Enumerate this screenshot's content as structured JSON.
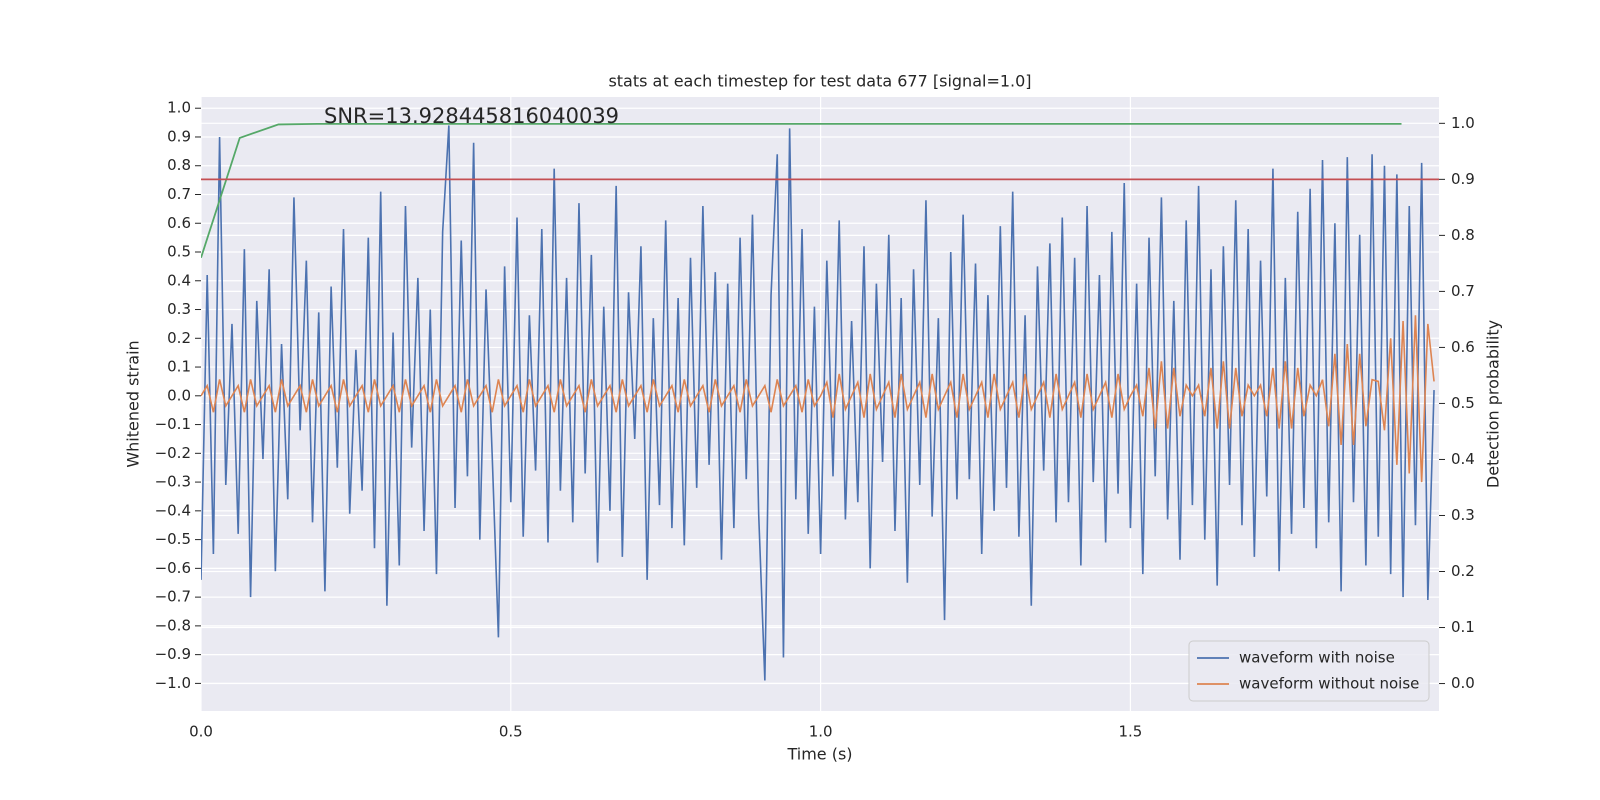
{
  "chart_data": {
    "type": "line",
    "title": "stats at each timestep for test data 677 [signal=1.0]",
    "annotation": "SNR=13.928445816040039",
    "xlabel": "Time (s)",
    "ylabel": "Whitened strain",
    "y2label": "Detection probability",
    "x": [
      0,
      0.01,
      0.02,
      0.03,
      0.04,
      0.05,
      0.06,
      0.07,
      0.08,
      0.09,
      0.1,
      0.11,
      0.12,
      0.13,
      0.14,
      0.15,
      0.16,
      0.17,
      0.18,
      0.19,
      0.2,
      0.21,
      0.22,
      0.23,
      0.24,
      0.25,
      0.26,
      0.27,
      0.28,
      0.29,
      0.3,
      0.31,
      0.32,
      0.33,
      0.34,
      0.35,
      0.36,
      0.37,
      0.38,
      0.39,
      0.4,
      0.41,
      0.42,
      0.43,
      0.44,
      0.45,
      0.46,
      0.47,
      0.48,
      0.49,
      0.5,
      0.51,
      0.52,
      0.53,
      0.54,
      0.55,
      0.56,
      0.57,
      0.58,
      0.59,
      0.6,
      0.61,
      0.62,
      0.63,
      0.64,
      0.65,
      0.66,
      0.67,
      0.68,
      0.69,
      0.7,
      0.71,
      0.72,
      0.73,
      0.74,
      0.75,
      0.76,
      0.77,
      0.78,
      0.79,
      0.8,
      0.81,
      0.82,
      0.83,
      0.84,
      0.85,
      0.86,
      0.87,
      0.88,
      0.89,
      0.9,
      0.91,
      0.92,
      0.93,
      0.94,
      0.95,
      0.96,
      0.97,
      0.98,
      0.99,
      1,
      1.01,
      1.02,
      1.03,
      1.04,
      1.05,
      1.06,
      1.07,
      1.08,
      1.09,
      1.1,
      1.11,
      1.12,
      1.13,
      1.14,
      1.15,
      1.16,
      1.17,
      1.18,
      1.19,
      1.2,
      1.21,
      1.22,
      1.23,
      1.24,
      1.25,
      1.26,
      1.27,
      1.28,
      1.29,
      1.3,
      1.31,
      1.32,
      1.33,
      1.34,
      1.35,
      1.36,
      1.37,
      1.38,
      1.39,
      1.4,
      1.41,
      1.42,
      1.43,
      1.44,
      1.45,
      1.46,
      1.47,
      1.48,
      1.49,
      1.5,
      1.51,
      1.52,
      1.53,
      1.54,
      1.55,
      1.56,
      1.57,
      1.58,
      1.59,
      1.6,
      1.61,
      1.62,
      1.63,
      1.64,
      1.65,
      1.66,
      1.67,
      1.68,
      1.69,
      1.7,
      1.71,
      1.72,
      1.73,
      1.74,
      1.75,
      1.76,
      1.77,
      1.78,
      1.79,
      1.8,
      1.81,
      1.82,
      1.83,
      1.84,
      1.85,
      1.86,
      1.87,
      1.88,
      1.89,
      1.9,
      1.91,
      1.92,
      1.93,
      1.94,
      1.95,
      1.96,
      1.97,
      1.98,
      1.99
    ],
    "series": [
      {
        "name": "waveform with noise",
        "color": "#4c72b0",
        "values": [
          -0.64,
          0.42,
          -0.55,
          0.9,
          -0.31,
          0.25,
          -0.48,
          0.51,
          -0.7,
          0.33,
          -0.22,
          0.44,
          -0.61,
          0.18,
          -0.36,
          0.69,
          -0.12,
          0.47,
          -0.44,
          0.29,
          -0.68,
          0.38,
          -0.25,
          0.58,
          -0.41,
          0.16,
          -0.33,
          0.55,
          -0.53,
          0.71,
          -0.73,
          0.22,
          -0.59,
          0.66,
          -0.18,
          0.41,
          -0.47,
          0.3,
          -0.62,
          0.57,
          0.94,
          -0.39,
          0.54,
          -0.28,
          0.88,
          -0.5,
          0.37,
          -0.21,
          -0.84,
          0.45,
          -0.37,
          0.62,
          -0.49,
          0.28,
          -0.26,
          0.58,
          -0.51,
          0.79,
          -0.33,
          0.41,
          -0.44,
          0.67,
          -0.27,
          0.49,
          -0.58,
          0.31,
          -0.4,
          0.73,
          -0.56,
          0.36,
          -0.15,
          0.52,
          -0.64,
          0.27,
          -0.38,
          0.61,
          -0.46,
          0.34,
          -0.52,
          0.48,
          -0.32,
          0.66,
          -0.24,
          0.43,
          -0.57,
          0.39,
          -0.46,
          0.55,
          -0.29,
          0.63,
          -0.41,
          -0.99,
          0.35,
          0.84,
          -0.91,
          0.93,
          -0.36,
          0.58,
          -0.48,
          0.31,
          -0.55,
          0.47,
          -0.28,
          0.61,
          -0.43,
          0.26,
          -0.37,
          0.52,
          -0.6,
          0.39,
          -0.23,
          0.56,
          -0.47,
          0.34,
          -0.65,
          0.44,
          -0.31,
          0.68,
          -0.42,
          0.27,
          -0.78,
          0.5,
          -0.36,
          0.63,
          -0.29,
          0.46,
          -0.55,
          0.35,
          -0.4,
          0.59,
          -0.32,
          0.71,
          -0.49,
          0.28,
          -0.73,
          0.45,
          -0.26,
          0.53,
          -0.44,
          0.62,
          -0.37,
          0.48,
          -0.59,
          0.66,
          -0.3,
          0.42,
          -0.51,
          0.57,
          -0.34,
          0.74,
          -0.46,
          0.39,
          -0.62,
          0.55,
          -0.28,
          0.69,
          -0.43,
          0.33,
          -0.57,
          0.61,
          -0.38,
          0.73,
          -0.5,
          0.44,
          -0.66,
          0.52,
          -0.31,
          0.68,
          -0.45,
          0.58,
          -0.56,
          0.47,
          -0.35,
          0.79,
          -0.61,
          0.41,
          -0.48,
          0.64,
          -0.39,
          0.72,
          -0.53,
          0.82,
          -0.44,
          0.6,
          -0.68,
          0.83,
          -0.37,
          0.56,
          -0.59,
          0.84,
          -0.49,
          0.8,
          -0.62,
          0.77,
          -0.7,
          0.66,
          -0.45,
          0.81,
          -0.71,
          0.02
        ]
      },
      {
        "name": "waveform without noise",
        "color": "#dd8452",
        "values": [
          0,
          0.035,
          -0.057,
          0.057,
          -0.035,
          0,
          0.035,
          -0.057,
          0.057,
          -0.035,
          0,
          0.035,
          -0.057,
          0.057,
          -0.035,
          0,
          0.035,
          -0.057,
          0.057,
          -0.035,
          0,
          0.035,
          -0.057,
          0.057,
          -0.035,
          0,
          0.035,
          -0.057,
          0.057,
          -0.035,
          0,
          0.035,
          -0.057,
          0.057,
          -0.035,
          0,
          0.035,
          -0.057,
          0.057,
          -0.035,
          0,
          0.035,
          -0.057,
          0.057,
          -0.035,
          0,
          0.035,
          -0.057,
          0.057,
          -0.035,
          0,
          0.035,
          -0.057,
          0.057,
          -0.035,
          0,
          0.035,
          -0.057,
          0.057,
          -0.035,
          0,
          0.035,
          -0.057,
          0.057,
          -0.035,
          0,
          0.035,
          -0.057,
          0.057,
          -0.035,
          0,
          0.035,
          -0.057,
          0.057,
          -0.035,
          0,
          0.035,
          -0.057,
          0.057,
          -0.035,
          0,
          0.035,
          -0.057,
          0.057,
          -0.035,
          0,
          0.035,
          -0.057,
          0.057,
          -0.035,
          0,
          0.035,
          -0.057,
          0.057,
          -0.035,
          0,
          0.035,
          -0.057,
          0.057,
          -0.035,
          0,
          0.047,
          -0.076,
          0.076,
          -0.047,
          0,
          0.047,
          -0.076,
          0.076,
          -0.047,
          0,
          0.047,
          -0.076,
          0.076,
          -0.047,
          0,
          0.047,
          -0.076,
          0.076,
          -0.047,
          0,
          0.047,
          -0.076,
          0.076,
          -0.047,
          0,
          0.047,
          -0.076,
          0.076,
          -0.047,
          0,
          0.047,
          -0.076,
          0.076,
          -0.047,
          0,
          0.047,
          -0.076,
          0.076,
          -0.047,
          0,
          0.047,
          -0.076,
          0.076,
          -0.047,
          0,
          0.047,
          -0.076,
          0.076,
          -0.047,
          0,
          0.037,
          -0.071,
          0.097,
          -0.114,
          0.12,
          -0.114,
          0.097,
          -0.071,
          0.037,
          0,
          0.037,
          -0.071,
          0.097,
          -0.114,
          0.12,
          -0.114,
          0.097,
          -0.071,
          0.037,
          0,
          0.037,
          -0.071,
          0.097,
          -0.114,
          0.12,
          -0.114,
          0.097,
          -0.071,
          0.037,
          0,
          0.056,
          -0.106,
          0.146,
          -0.171,
          0.18,
          -0.171,
          0.146,
          -0.106,
          0.056,
          0.05,
          -0.12,
          0.2,
          -0.24,
          0.26,
          -0.27,
          0.28,
          -0.3,
          0.25,
          0.05
        ]
      }
    ],
    "detection": {
      "color": "#55a868",
      "axis": "y2",
      "x": [
        0,
        0.0625,
        0.125,
        0.1875,
        0.25,
        0.3125,
        0.375,
        0.4375,
        0.5,
        0.5625,
        0.625,
        0.6875,
        0.75,
        0.8125,
        0.875,
        0.9375,
        1,
        1.0625,
        1.125,
        1.1875,
        1.25,
        1.3125,
        1.375,
        1.4375,
        1.5,
        1.5625,
        1.625,
        1.6875,
        1.75,
        1.8125,
        1.875,
        1.9375
      ],
      "values": [
        0.76,
        0.974,
        0.998,
        0.999,
        0.999,
        0.999,
        0.999,
        0.999,
        0.999,
        0.999,
        0.999,
        0.999,
        0.999,
        0.999,
        0.999,
        0.999,
        0.999,
        0.999,
        0.999,
        0.999,
        0.999,
        0.999,
        0.999,
        0.999,
        0.999,
        0.999,
        0.999,
        0.999,
        0.999,
        0.999,
        0.999,
        0.999
      ]
    },
    "threshold": {
      "color": "#c44e52",
      "axis": "y2",
      "value": 0.9
    },
    "xlim": [
      0,
      1.998
    ],
    "xticks": [
      {
        "value": 0,
        "label": "0.0"
      },
      0.5,
      {
        "value": 1,
        "label": "1.0"
      },
      1.5
    ],
    "ylim": [
      -1.096,
      1.039
    ],
    "yticks": [
      {
        "value": -1,
        "label": "−1.0"
      },
      {
        "value": -0.9,
        "label": "−0.9"
      },
      {
        "value": -0.8,
        "label": "−0.8"
      },
      {
        "value": -0.7,
        "label": "−0.7"
      },
      {
        "value": -0.6,
        "label": "−0.6"
      },
      {
        "value": -0.5,
        "label": "−0.5"
      },
      {
        "value": -0.4,
        "label": "−0.4"
      },
      {
        "value": -0.3,
        "label": "−0.3"
      },
      {
        "value": -0.2,
        "label": "−0.2"
      },
      {
        "value": -0.1,
        "label": "−0.1"
      },
      {
        "value": 0,
        "label": "0.0"
      },
      0.1,
      0.2,
      0.3,
      0.4,
      0.5,
      0.6,
      0.7,
      0.8,
      0.9,
      {
        "value": 1,
        "label": "1.0"
      }
    ],
    "y2lim": [
      -0.049,
      1.047
    ],
    "y2ticks": [
      {
        "value": 0,
        "label": "0.0"
      },
      0.1,
      0.2,
      0.3,
      0.4,
      0.5,
      0.6,
      0.7,
      0.8,
      0.9,
      {
        "value": 1,
        "label": "1.0"
      }
    ],
    "grid": true,
    "legend": "lower right"
  }
}
